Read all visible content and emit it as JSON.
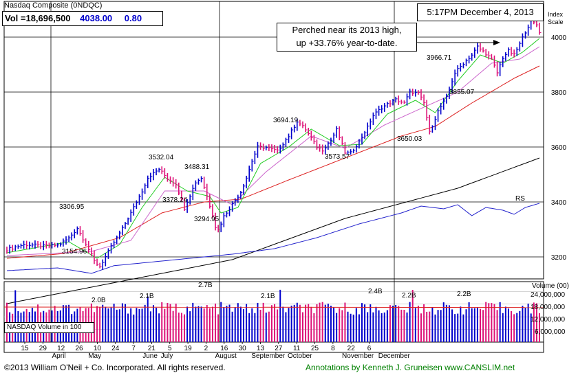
{
  "header": {
    "title": "Nasdaq Composite",
    "ticker": "(0NDQC)",
    "vol_label": "Vol =18,696,500",
    "price": "4038.00",
    "change": "0.80",
    "timestamp": "5:17PM December 4, 2013"
  },
  "annotation": {
    "line1": "Perched near its 2013 high,",
    "line2": "up +33.76% year-to-date."
  },
  "scale_label": {
    "line1": "Index",
    "line2": "Scale"
  },
  "volume_panel": {
    "label": "NASDAQ Volume in 100",
    "axis_title": "Volume (00)",
    "ticks": [
      "24,000,000",
      "18,000,000",
      "12,000,000",
      "6,000,000"
    ]
  },
  "footer": {
    "copyright": "©2013 William O'Neil + Co. Incorporated. All rights reserved.",
    "credit": "Annotations by Kenneth J. Gruneisen www.CANSLIM.net"
  },
  "colors": {
    "up_bar": "#0000cc",
    "down_bar": "#dd1177",
    "ma_short": "#22cc22",
    "ma_mid": "#cc66cc",
    "ma_50": "#dd2222",
    "ma_200": "#000000",
    "rs_line": "#2222cc",
    "footer_credit": "#008000",
    "price_text": "#0000cc"
  },
  "chart_data": {
    "type": "bar",
    "price_axis": {
      "ticks": [
        "3200",
        "3400",
        "3600",
        "3800",
        "4000"
      ],
      "range": [
        3120,
        4110
      ]
    },
    "volume_axis": {
      "range": [
        0,
        28000000
      ]
    },
    "x_labels": [
      "15",
      "29",
      "April",
      "12",
      "26",
      "May",
      "10",
      "24",
      "7",
      "June",
      "21",
      "July",
      "5",
      "19",
      "2",
      "August",
      "16",
      "30",
      "September",
      "13",
      "27",
      "October",
      "11",
      "25",
      "8",
      "November",
      "22",
      "6",
      "December"
    ],
    "price_labels": [
      "3306.95",
      "3154.96",
      "3532.04",
      "3488.31",
      "3378.24",
      "3294.95",
      "3694.19",
      "3573.57",
      "3650.03",
      "3966.71",
      "3855.07"
    ],
    "volume_labels": [
      "2.0B",
      "2.1B",
      "2.7B",
      "2.1B",
      "2.4B",
      "2.2B",
      "2.2B"
    ],
    "rs_label": "RS",
    "price_keypoints": [
      [
        0,
        3227
      ],
      [
        6,
        3245
      ],
      [
        13,
        3240
      ],
      [
        18,
        3242
      ],
      [
        22,
        3268
      ],
      [
        25,
        3305
      ],
      [
        28,
        3248
      ],
      [
        31,
        3185
      ],
      [
        33,
        3165
      ],
      [
        37,
        3236
      ],
      [
        41,
        3303
      ],
      [
        44,
        3360
      ],
      [
        48,
        3440
      ],
      [
        50,
        3488
      ],
      [
        54,
        3520
      ],
      [
        57,
        3485
      ],
      [
        60,
        3466
      ],
      [
        63,
        3378
      ],
      [
        67,
        3472
      ],
      [
        69,
        3488
      ],
      [
        71,
        3420
      ],
      [
        73,
        3355
      ],
      [
        74,
        3310
      ],
      [
        75,
        3298
      ],
      [
        77,
        3348
      ],
      [
        80,
        3392
      ],
      [
        83,
        3436
      ],
      [
        85,
        3488
      ],
      [
        87,
        3550
      ],
      [
        89,
        3600
      ],
      [
        92,
        3598
      ],
      [
        96,
        3585
      ],
      [
        100,
        3640
      ],
      [
        103,
        3694
      ],
      [
        106,
        3664
      ],
      [
        110,
        3600
      ],
      [
        112,
        3590
      ],
      [
        115,
        3625
      ],
      [
        117,
        3662
      ],
      [
        120,
        3580
      ],
      [
        122,
        3578
      ],
      [
        125,
        3620
      ],
      [
        128,
        3672
      ],
      [
        130,
        3715
      ],
      [
        133,
        3743
      ],
      [
        135,
        3755
      ],
      [
        138,
        3772
      ],
      [
        141,
        3760
      ],
      [
        143,
        3800
      ],
      [
        146,
        3795
      ],
      [
        148,
        3760
      ],
      [
        150,
        3653
      ],
      [
        153,
        3730
      ],
      [
        156,
        3780
      ],
      [
        159,
        3870
      ],
      [
        162,
        3905
      ],
      [
        165,
        3935
      ],
      [
        167,
        3965
      ],
      [
        170,
        3940
      ],
      [
        172,
        3920
      ],
      [
        174,
        3870
      ],
      [
        176,
        3925
      ],
      [
        178,
        3950
      ],
      [
        180,
        3935
      ],
      [
        182,
        3975
      ],
      [
        184,
        4020
      ],
      [
        186,
        4060
      ],
      [
        188,
        4045
      ],
      [
        189,
        4020
      ]
    ],
    "ma50_keypoints": [
      [
        0,
        3195
      ],
      [
        20,
        3212
      ],
      [
        40,
        3270
      ],
      [
        55,
        3360
      ],
      [
        70,
        3400
      ],
      [
        83,
        3410
      ],
      [
        100,
        3480
      ],
      [
        120,
        3560
      ],
      [
        140,
        3640
      ],
      [
        152,
        3675
      ],
      [
        165,
        3760
      ],
      [
        180,
        3850
      ],
      [
        189,
        3895
      ]
    ],
    "ma200_keypoints": [
      [
        0,
        3030
      ],
      [
        40,
        3110
      ],
      [
        80,
        3190
      ],
      [
        120,
        3340
      ],
      [
        160,
        3450
      ],
      [
        189,
        3560
      ]
    ],
    "ma_short_keypoints": [
      [
        0,
        3215
      ],
      [
        22,
        3255
      ],
      [
        32,
        3195
      ],
      [
        40,
        3245
      ],
      [
        48,
        3380
      ],
      [
        56,
        3490
      ],
      [
        64,
        3440
      ],
      [
        72,
        3420
      ],
      [
        76,
        3360
      ],
      [
        82,
        3380
      ],
      [
        90,
        3540
      ],
      [
        100,
        3600
      ],
      [
        108,
        3665
      ],
      [
        118,
        3605
      ],
      [
        126,
        3610
      ],
      [
        135,
        3720
      ],
      [
        145,
        3770
      ],
      [
        152,
        3725
      ],
      [
        160,
        3840
      ],
      [
        168,
        3935
      ],
      [
        176,
        3905
      ],
      [
        183,
        3945
      ],
      [
        189,
        3995
      ]
    ],
    "ma_mid_keypoints": [
      [
        0,
        3205
      ],
      [
        30,
        3220
      ],
      [
        44,
        3260
      ],
      [
        56,
        3440
      ],
      [
        70,
        3440
      ],
      [
        80,
        3390
      ],
      [
        92,
        3510
      ],
      [
        108,
        3640
      ],
      [
        120,
        3595
      ],
      [
        134,
        3680
      ],
      [
        148,
        3745
      ],
      [
        160,
        3800
      ],
      [
        172,
        3905
      ],
      [
        182,
        3920
      ],
      [
        189,
        3965
      ]
    ],
    "rs_keypoints": [
      [
        0,
        3150
      ],
      [
        18,
        3160
      ],
      [
        30,
        3140
      ],
      [
        38,
        3168
      ],
      [
        60,
        3190
      ],
      [
        80,
        3210
      ],
      [
        95,
        3230
      ],
      [
        110,
        3270
      ],
      [
        125,
        3320
      ],
      [
        140,
        3360
      ],
      [
        147,
        3385
      ],
      [
        155,
        3375
      ],
      [
        160,
        3390
      ],
      [
        165,
        3350
      ],
      [
        170,
        3380
      ],
      [
        176,
        3370
      ],
      [
        180,
        3355
      ],
      [
        184,
        3380
      ],
      [
        189,
        3395
      ]
    ]
  }
}
